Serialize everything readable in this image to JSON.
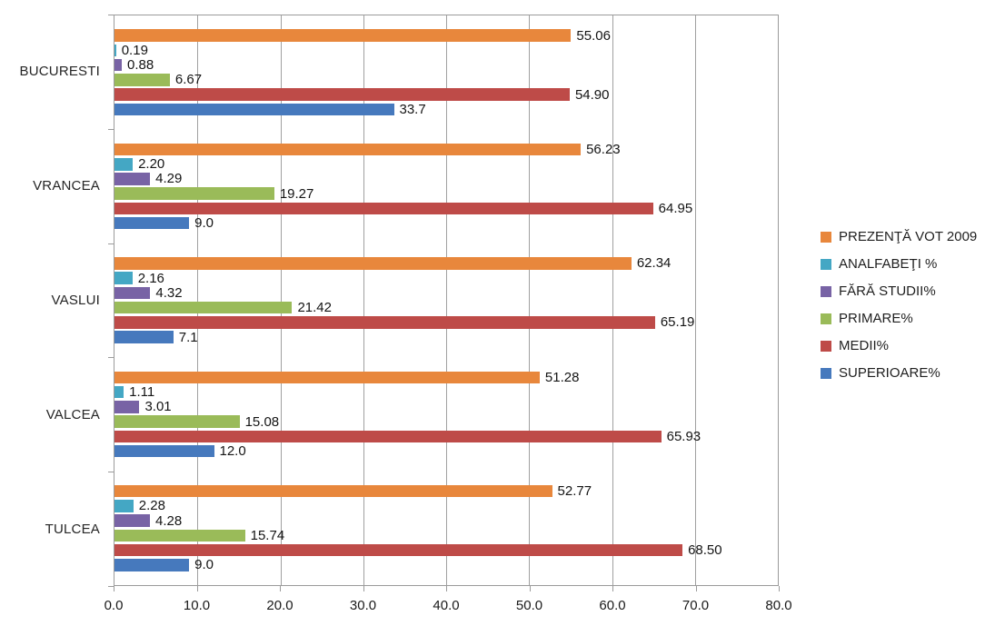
{
  "chart_data": {
    "type": "bar",
    "orientation": "horizontal",
    "title": "",
    "xlabel": "",
    "ylabel": "",
    "grid": true,
    "legend_position": "right",
    "xlim": [
      0,
      80
    ],
    "x_ticks": [
      0,
      10,
      20,
      30,
      40,
      50,
      60,
      70,
      80
    ],
    "x_tick_labels": [
      "0.0",
      "10.0",
      "20.0",
      "30.0",
      "40.0",
      "50.0",
      "60.0",
      "70.0",
      "80.0"
    ],
    "categories": [
      "BUCURESTI",
      "VRANCEA",
      "VASLUI",
      "VALCEA",
      "TULCEA"
    ],
    "series": [
      {
        "name": "PREZENŢĂ VOT 2009",
        "color": "#E8873C",
        "values": [
          55.06,
          56.23,
          62.34,
          51.28,
          52.77
        ],
        "labels": [
          "55.06",
          "56.23",
          "62.34",
          "51.28",
          "52.77"
        ]
      },
      {
        "name": "ANALFABEŢI %",
        "color": "#44A7C4",
        "values": [
          0.19,
          2.2,
          2.16,
          1.11,
          2.28
        ],
        "labels": [
          "0.19",
          "2.20",
          "2.16",
          "1.11",
          "2.28"
        ]
      },
      {
        "name": "FĂRĂ STUDII%",
        "color": "#7863A5",
        "values": [
          0.88,
          4.29,
          4.32,
          3.01,
          4.28
        ],
        "labels": [
          "0.88",
          "4.29",
          "4.32",
          "3.01",
          "4.28"
        ]
      },
      {
        "name": "PRIMARE%",
        "color": "#9ABB59",
        "values": [
          6.67,
          19.27,
          21.42,
          15.08,
          15.74
        ],
        "labels": [
          "6.67",
          "19.27",
          "21.42",
          "15.08",
          "15.74"
        ]
      },
      {
        "name": "MEDII%",
        "color": "#BE4B48",
        "values": [
          54.9,
          64.95,
          65.19,
          65.93,
          68.5
        ],
        "labels": [
          "54.90",
          "64.95",
          "65.19",
          "65.93",
          "68.50"
        ]
      },
      {
        "name": "SUPERIOARE%",
        "color": "#4679BD",
        "values": [
          33.7,
          9.0,
          7.1,
          12.0,
          9.0
        ],
        "labels": [
          "33.7",
          "9.0",
          "7.1",
          "12.0",
          "9.0"
        ]
      }
    ]
  },
  "colors": {
    "background": "#FFFFFF",
    "grid": "#A0A0A0",
    "axis": "#9B9B9B",
    "text": "#1F1F1F"
  }
}
